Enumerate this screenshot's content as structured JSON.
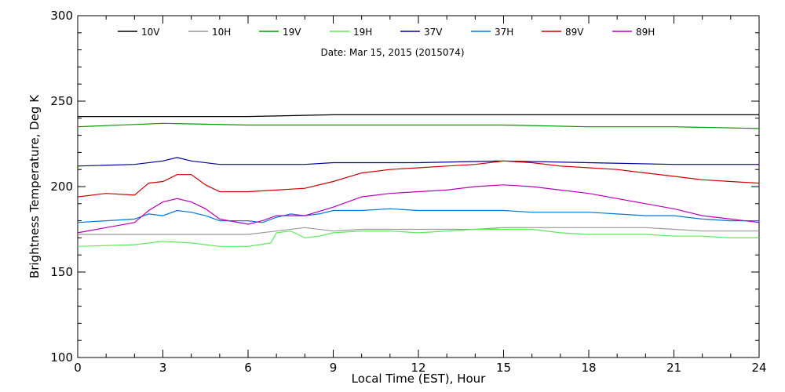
{
  "chart_data": {
    "type": "line",
    "title": "",
    "annotation": "Date: Mar 15, 2015 (2015074)",
    "xlabel": "Local Time (EST), Hour",
    "ylabel": "Brightness Temperature, Deg K",
    "xlim": [
      0,
      24
    ],
    "ylim": [
      100,
      300
    ],
    "xticks": [
      0,
      3,
      6,
      9,
      12,
      15,
      18,
      21,
      24
    ],
    "yticks": [
      100,
      150,
      200,
      250,
      300
    ],
    "grid": false,
    "legend_position": "top",
    "series": [
      {
        "name": "10V",
        "color": "#000000",
        "points": [
          [
            0,
            241
          ],
          [
            3,
            241
          ],
          [
            6,
            241
          ],
          [
            9,
            242
          ],
          [
            12,
            242
          ],
          [
            15,
            242
          ],
          [
            18,
            242
          ],
          [
            21,
            242
          ],
          [
            24,
            242
          ]
        ]
      },
      {
        "name": "10H",
        "color": "#999999",
        "points": [
          [
            0,
            172
          ],
          [
            3,
            172
          ],
          [
            6,
            172
          ],
          [
            7,
            174
          ],
          [
            8,
            176
          ],
          [
            9,
            174
          ],
          [
            10,
            175
          ],
          [
            12,
            175
          ],
          [
            14,
            175
          ],
          [
            15,
            176
          ],
          [
            16,
            176
          ],
          [
            18,
            176
          ],
          [
            20,
            176
          ],
          [
            21,
            175
          ],
          [
            22,
            174
          ],
          [
            24,
            174
          ]
        ]
      },
      {
        "name": "19V",
        "color": "#009900",
        "points": [
          [
            0,
            235
          ],
          [
            3,
            237
          ],
          [
            6,
            236
          ],
          [
            9,
            236
          ],
          [
            12,
            236
          ],
          [
            15,
            236
          ],
          [
            18,
            235
          ],
          [
            21,
            235
          ],
          [
            24,
            234
          ]
        ]
      },
      {
        "name": "19H",
        "color": "#55ee55",
        "points": [
          [
            0,
            165
          ],
          [
            2,
            166
          ],
          [
            3,
            168
          ],
          [
            4,
            167
          ],
          [
            5,
            165
          ],
          [
            6,
            165
          ],
          [
            6.8,
            167
          ],
          [
            7,
            173
          ],
          [
            7.5,
            174
          ],
          [
            8,
            170
          ],
          [
            8.5,
            171
          ],
          [
            9,
            173
          ],
          [
            10,
            174
          ],
          [
            11,
            174
          ],
          [
            12,
            173
          ],
          [
            13,
            174
          ],
          [
            14,
            175
          ],
          [
            15,
            175
          ],
          [
            16,
            175
          ],
          [
            17,
            173
          ],
          [
            18,
            172
          ],
          [
            20,
            172
          ],
          [
            21,
            171
          ],
          [
            22,
            171
          ],
          [
            23,
            170
          ],
          [
            24,
            170
          ]
        ]
      },
      {
        "name": "37V",
        "color": "#000099",
        "points": [
          [
            0,
            212
          ],
          [
            2,
            213
          ],
          [
            3,
            215
          ],
          [
            3.5,
            217
          ],
          [
            4,
            215
          ],
          [
            5,
            213
          ],
          [
            6,
            213
          ],
          [
            8,
            213
          ],
          [
            9,
            214
          ],
          [
            12,
            214
          ],
          [
            15,
            215
          ],
          [
            18,
            214
          ],
          [
            21,
            213
          ],
          [
            24,
            213
          ]
        ]
      },
      {
        "name": "37H",
        "color": "#0077dd",
        "points": [
          [
            0,
            179
          ],
          [
            1,
            180
          ],
          [
            2,
            181
          ],
          [
            2.5,
            184
          ],
          [
            3,
            183
          ],
          [
            3.5,
            186
          ],
          [
            4,
            185
          ],
          [
            4.5,
            183
          ],
          [
            5,
            180
          ],
          [
            6,
            180
          ],
          [
            6.5,
            179
          ],
          [
            7,
            182
          ],
          [
            7.5,
            184
          ],
          [
            8,
            183
          ],
          [
            8.5,
            184
          ],
          [
            9,
            186
          ],
          [
            10,
            186
          ],
          [
            11,
            187
          ],
          [
            12,
            186
          ],
          [
            13,
            186
          ],
          [
            14,
            186
          ],
          [
            15,
            186
          ],
          [
            16,
            185
          ],
          [
            17,
            185
          ],
          [
            18,
            185
          ],
          [
            19,
            184
          ],
          [
            20,
            183
          ],
          [
            21,
            183
          ],
          [
            22,
            181
          ],
          [
            23,
            180
          ],
          [
            24,
            180
          ]
        ]
      },
      {
        "name": "89V",
        "color": "#cc0000",
        "points": [
          [
            0,
            194
          ],
          [
            1,
            196
          ],
          [
            2,
            195
          ],
          [
            2.5,
            202
          ],
          [
            3,
            203
          ],
          [
            3.5,
            207
          ],
          [
            4,
            207
          ],
          [
            4.5,
            201
          ],
          [
            5,
            197
          ],
          [
            6,
            197
          ],
          [
            7,
            198
          ],
          [
            8,
            199
          ],
          [
            9,
            203
          ],
          [
            10,
            208
          ],
          [
            11,
            210
          ],
          [
            12,
            211
          ],
          [
            13,
            212
          ],
          [
            14,
            213
          ],
          [
            15,
            215
          ],
          [
            16,
            214
          ],
          [
            17,
            212
          ],
          [
            18,
            211
          ],
          [
            19,
            210
          ],
          [
            20,
            208
          ],
          [
            21,
            206
          ],
          [
            22,
            204
          ],
          [
            23,
            203
          ],
          [
            24,
            202
          ]
        ]
      },
      {
        "name": "89H",
        "color": "#bb00bb",
        "points": [
          [
            0,
            173
          ],
          [
            1,
            176
          ],
          [
            2,
            179
          ],
          [
            2.5,
            186
          ],
          [
            3,
            191
          ],
          [
            3.5,
            193
          ],
          [
            4,
            191
          ],
          [
            4.5,
            187
          ],
          [
            5,
            181
          ],
          [
            6,
            178
          ],
          [
            6.5,
            180
          ],
          [
            7,
            183
          ],
          [
            8,
            183
          ],
          [
            9,
            188
          ],
          [
            10,
            194
          ],
          [
            11,
            196
          ],
          [
            12,
            197
          ],
          [
            13,
            198
          ],
          [
            14,
            200
          ],
          [
            15,
            201
          ],
          [
            16,
            200
          ],
          [
            17,
            198
          ],
          [
            18,
            196
          ],
          [
            19,
            193
          ],
          [
            20,
            190
          ],
          [
            21,
            187
          ],
          [
            22,
            183
          ],
          [
            23,
            181
          ],
          [
            24,
            179
          ]
        ]
      }
    ]
  }
}
